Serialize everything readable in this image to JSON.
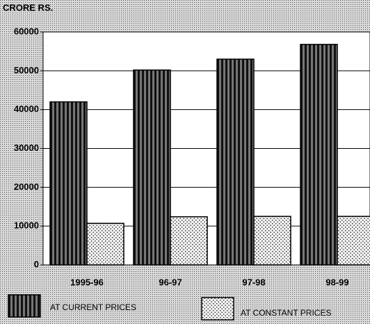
{
  "chart_data": {
    "type": "bar",
    "ylabel": "CRORE RS.",
    "categories": [
      "1995-96",
      "96-97",
      "97-98",
      "98-99"
    ],
    "series": [
      {
        "name": "AT CURRENT PRICES",
        "color": "#000000",
        "pattern": "stripes",
        "values": [
          42000,
          50200,
          53000,
          56800
        ]
      },
      {
        "name": "AT CONSTANT PRICES",
        "color": "#000000",
        "pattern": "dots",
        "values": [
          10700,
          12400,
          12500,
          12500
        ]
      }
    ],
    "ylim": [
      0,
      60000
    ],
    "yticks": [
      0,
      10000,
      20000,
      30000,
      40000,
      50000,
      60000
    ],
    "grid": true
  }
}
